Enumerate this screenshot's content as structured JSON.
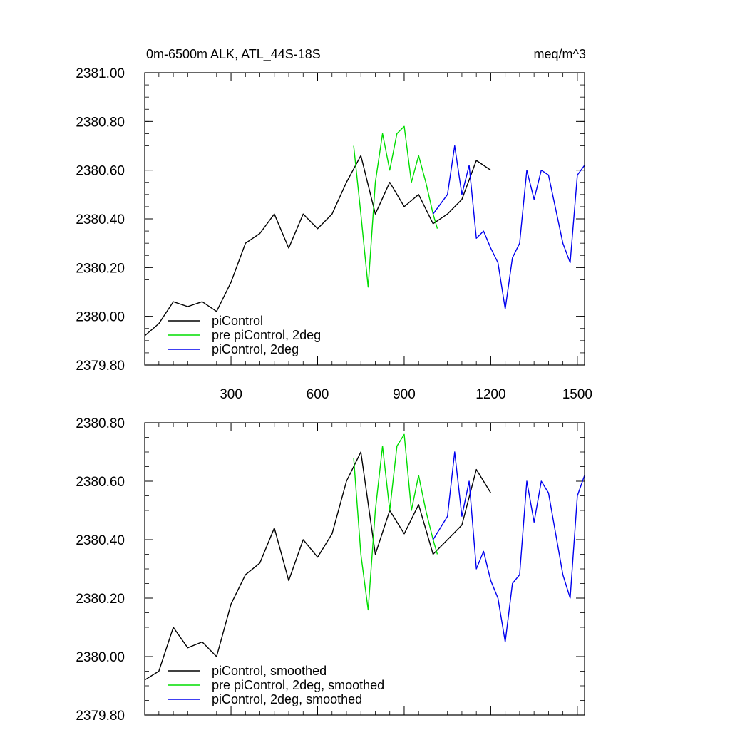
{
  "colors": {
    "piControl": "#000000",
    "pre_piControl_2deg": "#00dd00",
    "piControl_2deg": "#0000ee"
  },
  "chart_data": [
    {
      "type": "line",
      "title": "0m-6500m ALK, ATL_44S-18S",
      "units": "meq/m^3",
      "xlim": [
        1,
        1525
      ],
      "ylim": [
        2379.8,
        2381.0
      ],
      "xticks": [
        300,
        600,
        900,
        1200,
        1500
      ],
      "xtick_labels": [
        "300",
        "600",
        "900",
        "1200",
        "1500"
      ],
      "yticks": [
        2379.8,
        2380.0,
        2380.2,
        2380.4,
        2380.6,
        2380.8,
        2381.0
      ],
      "ytick_labels": [
        "2379.80",
        "2380.00",
        "2380.20",
        "2380.40",
        "2380.60",
        "2380.80",
        "2381.00"
      ],
      "legend_position": "bottom-left",
      "series": [
        {
          "name": "piControl",
          "color": "#000000",
          "x": [
            1,
            50,
            100,
            150,
            200,
            250,
            300,
            350,
            400,
            450,
            500,
            550,
            600,
            650,
            700,
            750,
            800,
            850,
            900,
            950,
            1000,
            1050,
            1100,
            1150,
            1200
          ],
          "y": [
            2379.92,
            2379.97,
            2380.06,
            2380.04,
            2380.06,
            2380.02,
            2380.14,
            2380.3,
            2380.34,
            2380.42,
            2380.28,
            2380.42,
            2380.36,
            2380.42,
            2380.55,
            2380.66,
            2380.42,
            2380.55,
            2380.45,
            2380.5,
            2380.38,
            2380.42,
            2380.48,
            2380.64,
            2380.6
          ]
        },
        {
          "name": "pre piControl, 2deg",
          "color": "#00dd00",
          "x": [
            725,
            750,
            775,
            800,
            825,
            850,
            875,
            900,
            925,
            950,
            975,
            1000,
            1015
          ],
          "y": [
            2380.7,
            2380.42,
            2380.12,
            2380.55,
            2380.75,
            2380.6,
            2380.75,
            2380.78,
            2380.55,
            2380.66,
            2380.55,
            2380.42,
            2380.36
          ]
        },
        {
          "name": "piControl, 2deg",
          "color": "#0000ee",
          "x": [
            1000,
            1050,
            1075,
            1100,
            1125,
            1150,
            1175,
            1200,
            1225,
            1250,
            1275,
            1300,
            1325,
            1350,
            1375,
            1400,
            1425,
            1450,
            1475,
            1500,
            1525
          ],
          "y": [
            2380.42,
            2380.5,
            2380.7,
            2380.5,
            2380.62,
            2380.32,
            2380.35,
            2380.28,
            2380.22,
            2380.03,
            2380.24,
            2380.3,
            2380.6,
            2380.48,
            2380.6,
            2380.58,
            2380.44,
            2380.3,
            2380.22,
            2380.58,
            2380.62
          ]
        }
      ]
    },
    {
      "type": "line",
      "xlim": [
        1,
        1525
      ],
      "ylim": [
        2379.8,
        2380.8
      ],
      "xticks": [
        300,
        600,
        900,
        1200,
        1500
      ],
      "yticks": [
        2379.8,
        2380.0,
        2380.2,
        2380.4,
        2380.6,
        2380.8
      ],
      "ytick_labels": [
        "2379.80",
        "2380.00",
        "2380.20",
        "2380.40",
        "2380.60",
        "2380.80"
      ],
      "legend_position": "bottom-left",
      "series": [
        {
          "name": "piControl, smoothed",
          "color": "#000000",
          "x": [
            1,
            50,
            100,
            150,
            200,
            250,
            300,
            350,
            400,
            450,
            500,
            550,
            600,
            650,
            700,
            750,
            800,
            850,
            900,
            950,
            1000,
            1050,
            1100,
            1150,
            1200
          ],
          "y": [
            2379.92,
            2379.95,
            2380.1,
            2380.03,
            2380.05,
            2380.0,
            2380.18,
            2380.28,
            2380.32,
            2380.44,
            2380.26,
            2380.4,
            2380.34,
            2380.42,
            2380.6,
            2380.7,
            2380.35,
            2380.5,
            2380.42,
            2380.52,
            2380.35,
            2380.4,
            2380.45,
            2380.64,
            2380.56
          ]
        },
        {
          "name": "pre piControl, 2deg, smoothed",
          "color": "#00dd00",
          "x": [
            725,
            750,
            775,
            800,
            825,
            850,
            875,
            900,
            925,
            950,
            975,
            1000,
            1015
          ],
          "y": [
            2380.68,
            2380.35,
            2380.16,
            2380.5,
            2380.72,
            2380.5,
            2380.72,
            2380.76,
            2380.5,
            2380.62,
            2380.5,
            2380.4,
            2380.35
          ]
        },
        {
          "name": "piControl, 2deg, smoothed",
          "color": "#0000ee",
          "x": [
            1000,
            1050,
            1075,
            1100,
            1125,
            1150,
            1175,
            1200,
            1225,
            1250,
            1275,
            1300,
            1325,
            1350,
            1375,
            1400,
            1425,
            1450,
            1475,
            1500,
            1525
          ],
          "y": [
            2380.4,
            2380.48,
            2380.7,
            2380.48,
            2380.6,
            2380.3,
            2380.36,
            2380.26,
            2380.2,
            2380.05,
            2380.25,
            2380.28,
            2380.6,
            2380.46,
            2380.6,
            2380.56,
            2380.42,
            2380.28,
            2380.2,
            2380.55,
            2380.62
          ]
        }
      ]
    }
  ]
}
